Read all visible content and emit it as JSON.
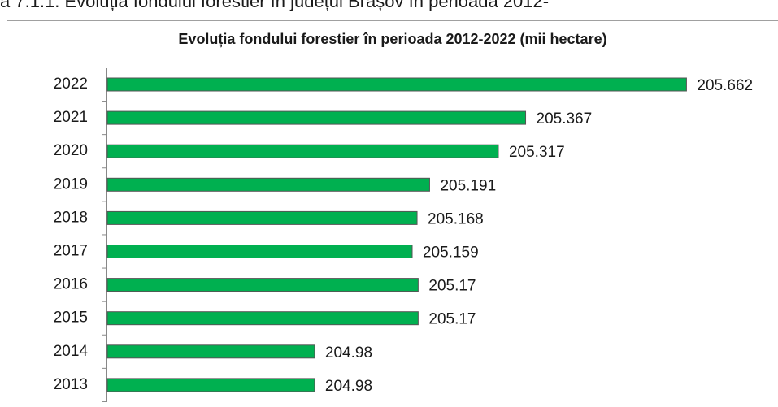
{
  "caption": "a 7.1.1. Evoluția fondului forestier în județul Brașov în perioada 2012-",
  "chart_data": {
    "type": "bar",
    "orientation": "horizontal",
    "title": "Evoluția fondului forestier în perioada 2012-2022 (mii hectare)",
    "categories": [
      "2022",
      "2021",
      "2020",
      "2019",
      "2018",
      "2017",
      "2016",
      "2015",
      "2014",
      "2013"
    ],
    "values": [
      205.662,
      205.367,
      205.317,
      205.191,
      205.168,
      205.159,
      205.17,
      205.17,
      204.98,
      204.98
    ],
    "color": "#00b050",
    "xlim": [
      204.6,
      205.8
    ]
  }
}
